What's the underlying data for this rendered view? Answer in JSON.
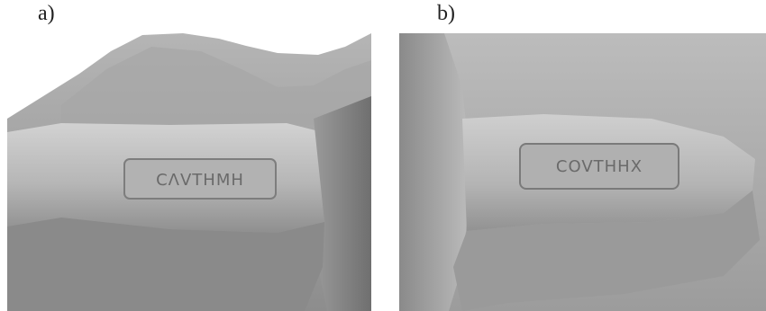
{
  "panels": [
    {
      "label": "a)",
      "stamp_text": "CΛVTHMH"
    },
    {
      "label": "b)",
      "stamp_text": "COVTHHX"
    }
  ],
  "colors": {
    "background": "#ffffff",
    "clay_light": "#c9c9c9",
    "clay_mid": "#a9a9a9",
    "clay_dark": "#7f7f7f"
  }
}
